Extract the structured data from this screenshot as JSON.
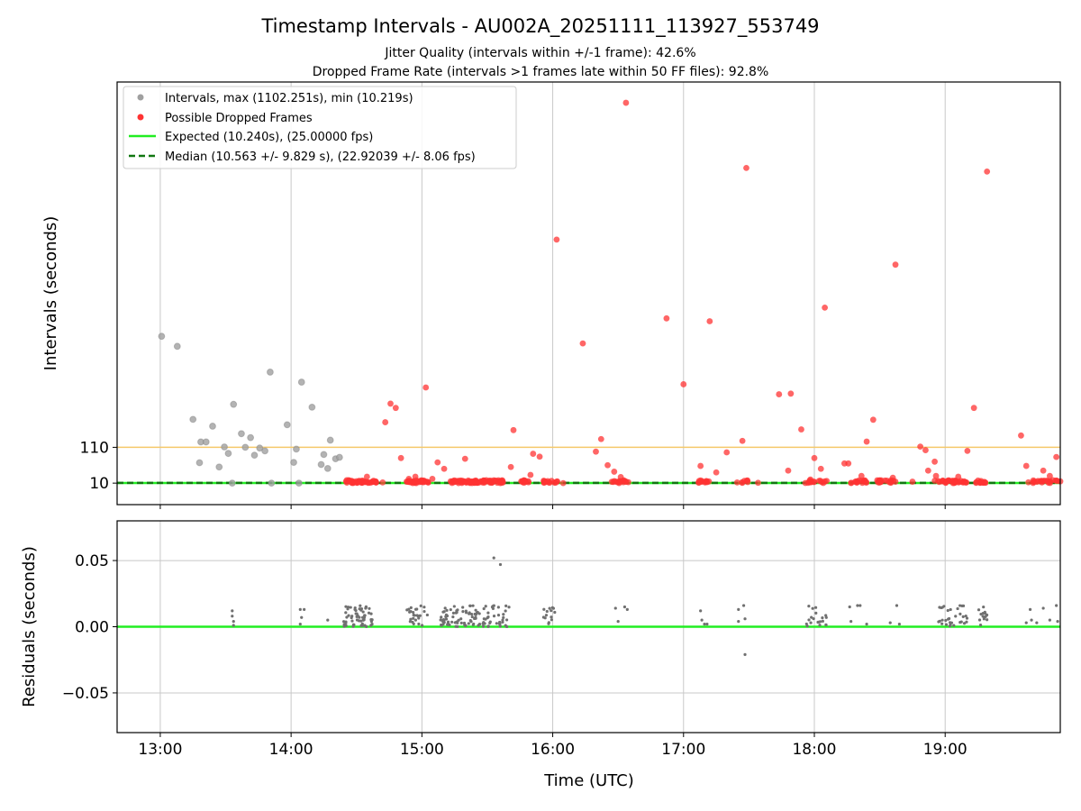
{
  "chart_data": [
    {
      "type": "scatter",
      "title": "Timestamp Intervals - AU002A_20251111_113927_553749",
      "subtitle_lines": [
        "Jitter Quality (intervals within +/-1 frame): 42.6%",
        "Dropped Frame Rate (intervals >1 frames late within 50 FF files): 92.8%"
      ],
      "xlabel": "",
      "ylabel": "Intervals (seconds)",
      "xlim": [
        12.67,
        19.88
      ],
      "ylim": [
        -50,
        1130
      ],
      "yticks": [
        {
          "value": 10,
          "label": "10"
        },
        {
          "value": 110,
          "label": "110"
        }
      ],
      "legend": {
        "position": "top-left",
        "entries": [
          {
            "kind": "dot",
            "color": "#a0a0a0",
            "label": "Intervals, max (1102.251s), min (10.219s)"
          },
          {
            "kind": "dot",
            "color": "#ff3333",
            "label": "Possible Dropped Frames"
          },
          {
            "kind": "line",
            "color": "#22ee22",
            "label": "Expected (10.240s), (25.00000 fps)"
          },
          {
            "kind": "dash",
            "color": "#117711",
            "label": "Median (10.563 +/- 9.829 s), (22.92039 +/- 8.06 fps)"
          }
        ]
      },
      "reference_lines": [
        {
          "name": "threshold-line",
          "y": 110,
          "color": "#f5c96a"
        },
        {
          "name": "expected-line",
          "y": 10.24,
          "color": "#22ee22"
        },
        {
          "name": "median-line",
          "y": 10.563,
          "color": "#117711"
        }
      ],
      "series": [
        {
          "name": "Intervals",
          "color": "#a0a0a0",
          "points": [
            [
              13.01,
              420
            ],
            [
              13.13,
              392
            ],
            [
              13.25,
              188
            ],
            [
              13.31,
              125
            ],
            [
              13.35,
              125
            ],
            [
              13.4,
              169
            ],
            [
              13.45,
              55
            ],
            [
              13.49,
              111
            ],
            [
              13.52,
              93
            ],
            [
              13.56,
              230
            ],
            [
              13.62,
              148
            ],
            [
              13.65,
              110
            ],
            [
              13.69,
              137
            ],
            [
              13.72,
              88
            ],
            [
              13.76,
              108
            ],
            [
              13.8,
              100
            ],
            [
              13.84,
              320
            ],
            [
              13.97,
              173
            ],
            [
              14.02,
              68
            ],
            [
              14.04,
              105
            ],
            [
              14.08,
              292
            ],
            [
              14.16,
              222
            ],
            [
              14.23,
              62
            ],
            [
              14.25,
              90
            ],
            [
              14.28,
              51
            ],
            [
              14.3,
              130
            ],
            [
              14.34,
              78
            ],
            [
              14.37,
              82
            ],
            [
              13.55,
              10
            ],
            [
              14.06,
              10
            ],
            [
              13.3,
              67
            ],
            [
              13.85,
              10
            ]
          ]
        },
        {
          "name": "Possible Dropped Frames",
          "color": "#ff3333",
          "points": [
            [
              14.58,
              28
            ],
            [
              14.62,
              13
            ],
            [
              14.65,
              12
            ],
            [
              14.7,
              12
            ],
            [
              14.72,
              180
            ],
            [
              14.76,
              232
            ],
            [
              14.8,
              220
            ],
            [
              14.84,
              80
            ],
            [
              14.9,
              22
            ],
            [
              14.95,
              28
            ],
            [
              15.03,
              277
            ],
            [
              15.08,
              22
            ],
            [
              15.12,
              68
            ],
            [
              15.17,
              50
            ],
            [
              15.22,
              15
            ],
            [
              15.28,
              10
            ],
            [
              15.33,
              78
            ],
            [
              15.4,
              11
            ],
            [
              15.48,
              12
            ],
            [
              15.55,
              18
            ],
            [
              15.62,
              12
            ],
            [
              15.68,
              55
            ],
            [
              15.7,
              158
            ],
            [
              15.78,
              18
            ],
            [
              15.83,
              33
            ],
            [
              15.85,
              92
            ],
            [
              15.9,
              84
            ],
            [
              15.97,
              12
            ],
            [
              16.03,
              690
            ],
            [
              16.23,
              400
            ],
            [
              16.33,
              98
            ],
            [
              16.37,
              133
            ],
            [
              16.42,
              60
            ],
            [
              16.47,
              42
            ],
            [
              16.52,
              27
            ],
            [
              16.56,
              1072
            ],
            [
              16.87,
              470
            ],
            [
              17.0,
              286
            ],
            [
              17.13,
              58
            ],
            [
              17.2,
              462
            ],
            [
              17.25,
              40
            ],
            [
              17.33,
              96
            ],
            [
              17.41,
              12
            ],
            [
              17.45,
              128
            ],
            [
              17.48,
              890
            ],
            [
              17.57,
              11
            ],
            [
              17.73,
              258
            ],
            [
              17.8,
              45
            ],
            [
              17.82,
              260
            ],
            [
              17.9,
              160
            ],
            [
              17.97,
              20
            ],
            [
              18.0,
              80
            ],
            [
              18.05,
              50
            ],
            [
              18.08,
              500
            ],
            [
              18.23,
              65
            ],
            [
              18.26,
              65
            ],
            [
              18.32,
              15
            ],
            [
              18.36,
              30
            ],
            [
              18.4,
              126
            ],
            [
              18.45,
              187
            ],
            [
              18.5,
              17
            ],
            [
              18.6,
              25
            ],
            [
              18.62,
              620
            ],
            [
              18.75,
              14
            ],
            [
              18.81,
              112
            ],
            [
              18.85,
              102
            ],
            [
              18.87,
              45
            ],
            [
              18.92,
              70
            ],
            [
              18.98,
              15
            ],
            [
              19.1,
              28
            ],
            [
              19.17,
              100
            ],
            [
              19.22,
              220
            ],
            [
              19.27,
              12
            ],
            [
              19.32,
              880
            ],
            [
              19.58,
              143
            ],
            [
              19.62,
              58
            ],
            [
              19.68,
              14
            ],
            [
              19.75,
              45
            ],
            [
              19.8,
              30
            ],
            [
              19.85,
              83
            ],
            [
              19.88,
              15
            ],
            [
              18.93,
              30
            ],
            [
              19.06,
              10
            ],
            [
              19.14,
              12
            ],
            [
              15.6,
              10
            ],
            [
              14.47,
              11
            ],
            [
              14.93,
              10
            ],
            [
              16.08,
              10
            ]
          ]
        }
      ],
      "dense_clusters": [
        {
          "range": [
            14.42,
            14.65
          ],
          "count": 40
        },
        {
          "range": [
            14.88,
            15.05
          ],
          "count": 30
        },
        {
          "range": [
            15.22,
            15.62
          ],
          "count": 75
        },
        {
          "range": [
            15.75,
            15.83
          ],
          "count": 10
        },
        {
          "range": [
            15.93,
            16.05
          ],
          "count": 12
        },
        {
          "range": [
            16.43,
            16.58
          ],
          "count": 15
        },
        {
          "range": [
            17.1,
            17.2
          ],
          "count": 12
        },
        {
          "range": [
            17.42,
            17.5
          ],
          "count": 6
        },
        {
          "range": [
            17.93,
            18.1
          ],
          "count": 15
        },
        {
          "range": [
            18.25,
            18.4
          ],
          "count": 14
        },
        {
          "range": [
            18.47,
            18.62
          ],
          "count": 20
        },
        {
          "range": [
            18.92,
            19.17
          ],
          "count": 28
        },
        {
          "range": [
            19.23,
            19.32
          ],
          "count": 12
        },
        {
          "range": [
            19.63,
            19.88
          ],
          "count": 22
        }
      ]
    },
    {
      "type": "scatter",
      "xlabel": "Time (UTC)",
      "ylabel": "Residuals (seconds)",
      "xlim": [
        12.67,
        19.88
      ],
      "ylim": [
        -0.08,
        0.08
      ],
      "xticks": [
        {
          "value": 13,
          "label": "13:00"
        },
        {
          "value": 14,
          "label": "14:00"
        },
        {
          "value": 15,
          "label": "15:00"
        },
        {
          "value": 16,
          "label": "16:00"
        },
        {
          "value": 17,
          "label": "17:00"
        },
        {
          "value": 18,
          "label": "18:00"
        },
        {
          "value": 19,
          "label": "19:00"
        }
      ],
      "yticks": [
        {
          "value": 0.05,
          "label": "0.05"
        },
        {
          "value": 0.0,
          "label": "0.00"
        },
        {
          "value": -0.05,
          "label": "−0.05"
        }
      ],
      "zero_line_color": "#22ee22",
      "series": [
        {
          "name": "Residuals",
          "color": "#707070",
          "points": [
            [
              13.55,
              0.012
            ],
            [
              13.55,
              0.008
            ],
            [
              13.56,
              0.004
            ],
            [
              13.56,
              0.001
            ],
            [
              14.07,
              0.013
            ],
            [
              14.08,
              0.007
            ],
            [
              14.07,
              0.002
            ],
            [
              14.1,
              0.013
            ],
            [
              14.28,
              0.005
            ],
            [
              15.55,
              0.052
            ],
            [
              15.6,
              0.047
            ],
            [
              17.47,
              -0.021
            ],
            [
              17.46,
              0.016
            ],
            [
              17.42,
              0.013
            ],
            [
              17.42,
              0.004
            ],
            [
              17.47,
              0.006
            ],
            [
              16.48,
              0.014
            ],
            [
              16.5,
              0.004
            ],
            [
              16.55,
              0.015
            ],
            [
              16.57,
              0.013
            ],
            [
              17.13,
              0.012
            ],
            [
              17.14,
              0.005
            ],
            [
              17.16,
              0.002
            ],
            [
              17.18,
              0.002
            ],
            [
              18.27,
              0.015
            ],
            [
              18.28,
              0.004
            ],
            [
              18.33,
              0.016
            ],
            [
              18.35,
              0.016
            ],
            [
              18.4,
              0.002
            ],
            [
              18.58,
              0.003
            ],
            [
              18.63,
              0.016
            ],
            [
              18.65,
              0.002
            ],
            [
              19.62,
              0.003
            ],
            [
              19.65,
              0.013
            ],
            [
              19.66,
              0.005
            ],
            [
              19.7,
              0.003
            ],
            [
              19.75,
              0.014
            ],
            [
              19.8,
              0.005
            ],
            [
              19.85,
              0.016
            ],
            [
              19.86,
              0.004
            ]
          ]
        }
      ],
      "dense_clusters": [
        {
          "range": [
            14.4,
            14.62
          ],
          "count": 60,
          "min": 0.0,
          "max": 0.016
        },
        {
          "range": [
            14.88,
            15.05
          ],
          "count": 26,
          "min": 0.001,
          "max": 0.016
        },
        {
          "range": [
            15.14,
            15.68
          ],
          "count": 110,
          "min": 0.0,
          "max": 0.016
        },
        {
          "range": [
            15.93,
            16.03
          ],
          "count": 14,
          "min": 0.002,
          "max": 0.015
        },
        {
          "range": [
            17.94,
            18.1
          ],
          "count": 20,
          "min": 0.0,
          "max": 0.016
        },
        {
          "range": [
            18.95,
            19.17
          ],
          "count": 32,
          "min": 0.0,
          "max": 0.016
        },
        {
          "range": [
            19.24,
            19.32
          ],
          "count": 14,
          "min": 0.001,
          "max": 0.016
        }
      ]
    }
  ]
}
